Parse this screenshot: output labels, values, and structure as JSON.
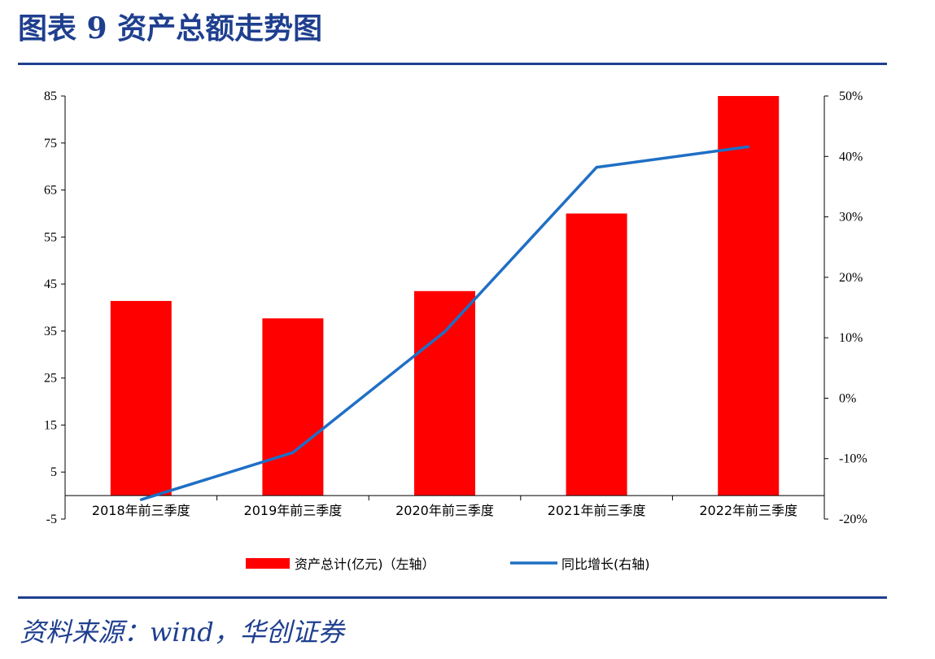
{
  "figure_title": "图表 9   资产总额走势图",
  "source": "资料来源：wind，华创证券",
  "colors": {
    "bar": "#FF0000",
    "line": "#1F6FC5",
    "rule": "#1F3F8F"
  },
  "chart_data": {
    "type": "bar",
    "categories": [
      "2018年前三季度",
      "2019年前三季度",
      "2020年前三季度",
      "2021年前三季度",
      "2022年前三季度"
    ],
    "series": [
      {
        "name": "资产总计(亿元)（左轴）",
        "type": "bar",
        "axis": "left",
        "values": [
          41.4,
          37.7,
          43.5,
          60.0,
          85.0
        ]
      },
      {
        "name": "同比增长(右轴)",
        "type": "line",
        "axis": "right",
        "values": [
          -16.8,
          -9.0,
          11.0,
          38.2,
          41.6
        ]
      }
    ],
    "left_axis": {
      "ylim": [
        -5,
        85
      ],
      "ticks": [
        "85",
        "75",
        "65",
        "55",
        "45",
        "35",
        "25",
        "15",
        "5",
        "-5"
      ]
    },
    "right_axis": {
      "unit": "%",
      "ylim": [
        -20,
        50
      ],
      "ticks": [
        "50%",
        "40%",
        "30%",
        "20%",
        "10%",
        "0%",
        "-10%",
        "-20%"
      ]
    },
    "grid": false,
    "legend_position": "bottom"
  }
}
